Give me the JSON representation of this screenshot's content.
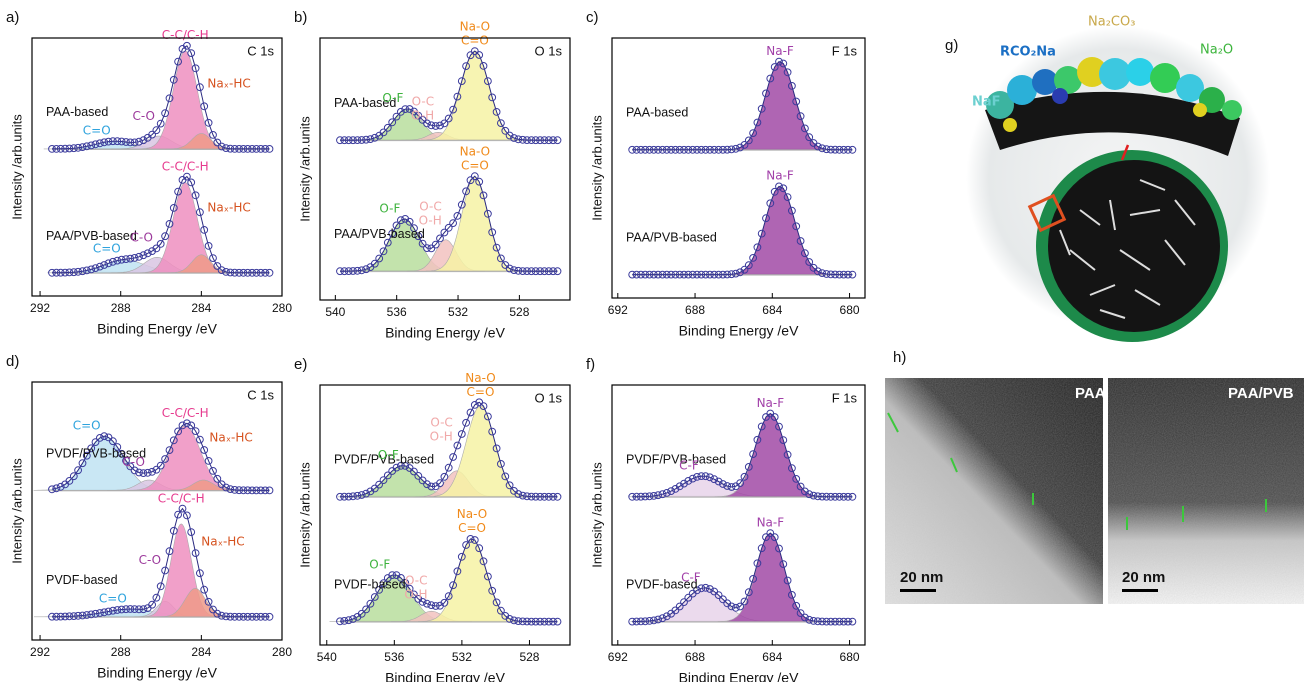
{
  "chart_data": [
    {
      "type": "area",
      "panel_label": "a)",
      "title": "C 1s",
      "xlabel": "Binding Energy /eV",
      "ylabel": "Intensity /arb.units",
      "xlim": [
        292.4,
        280
      ],
      "xticks": [
        292,
        288,
        284,
        280
      ],
      "ylim": [
        0,
        100
      ],
      "spectra": [
        {
          "name": "PAA-based",
          "baseline": 57,
          "peaks": [
            {
              "labels": [
                "C=O"
              ],
              "center": 288.3,
              "height": 3,
              "width": 2.2,
              "color": "#bfe3f2",
              "label_color": "#2ea3dd"
            },
            {
              "labels": [
                "C-O"
              ],
              "center": 286.1,
              "height": 5,
              "width": 1.5,
              "color": "#d9c6e3",
              "label_color": "#9c3a9c"
            },
            {
              "labels": [
                "C-C/C-H"
              ],
              "center": 284.8,
              "height": 38,
              "width": 1.4,
              "color": "#ef8fc0",
              "label_color": "#e63a8e"
            },
            {
              "labels": [
                "Naₓ-HC"
              ],
              "center": 284.0,
              "height": 6,
              "width": 1.1,
              "color": "#ee9a88",
              "label_color": "#d6521f"
            }
          ]
        },
        {
          "name": "PAA/PVB-based",
          "baseline": 9,
          "peaks": [
            {
              "labels": [
                "C=O"
              ],
              "center": 287.8,
              "height": 5,
              "width": 2.4,
              "color": "#bfe3f2",
              "label_color": "#2ea3dd"
            },
            {
              "labels": [
                "C-O"
              ],
              "center": 286.2,
              "height": 6,
              "width": 1.5,
              "color": "#d9c6e3",
              "label_color": "#9c3a9c"
            },
            {
              "labels": [
                "C-C/C-H"
              ],
              "center": 284.8,
              "height": 35,
              "width": 1.4,
              "color": "#ef8fc0",
              "label_color": "#e63a8e"
            },
            {
              "labels": [
                "Naₓ-HC"
              ],
              "center": 284.0,
              "height": 7,
              "width": 1.1,
              "color": "#ee9a88",
              "label_color": "#d6521f"
            }
          ]
        }
      ]
    },
    {
      "type": "area",
      "panel_label": "b)",
      "title": "O 1s",
      "xlabel": "Binding Energy /eV",
      "ylabel": "Intensity /arb.units",
      "xlim": [
        541,
        524.7
      ],
      "xticks": [
        540,
        536,
        532,
        528
      ],
      "ylim": [
        0,
        100
      ],
      "spectra": [
        {
          "name": "PAA-based",
          "baseline": 61,
          "peaks": [
            {
              "labels": [
                "O-F"
              ],
              "center": 535.3,
              "height": 12,
              "width": 2.2,
              "color": "#b9de9e",
              "label_color": "#3db33d"
            },
            {
              "labels": [
                "O-C",
                "O-H"
              ],
              "center": 533.3,
              "height": 3,
              "width": 1.5,
              "color": "#f2c2c0",
              "label_color": "#f0a8a8"
            },
            {
              "labels": [
                "Na-O",
                "C=O"
              ],
              "center": 530.9,
              "height": 34,
              "width": 2.2,
              "color": "#f6f2a4",
              "label_color": "#f08a1a"
            }
          ]
        },
        {
          "name": "PAA/PVB-based",
          "baseline": 11,
          "peaks": [
            {
              "labels": [
                "O-F"
              ],
              "center": 535.5,
              "height": 20,
              "width": 2.3,
              "color": "#b9de9e",
              "label_color": "#3db33d"
            },
            {
              "labels": [
                "O-C",
                "O-H"
              ],
              "center": 532.8,
              "height": 12,
              "width": 1.6,
              "color": "#f2c2c0",
              "label_color": "#f0a8a8"
            },
            {
              "labels": [
                "Na-O",
                "C=O"
              ],
              "center": 530.9,
              "height": 36,
              "width": 2.0,
              "color": "#f6f2a4",
              "label_color": "#f08a1a"
            }
          ]
        }
      ]
    },
    {
      "type": "area",
      "panel_label": "c)",
      "title": "F 1s",
      "xlabel": "Binding Energy /eV",
      "ylabel": "Intensity /arb.units",
      "xlim": [
        692.3,
        679.2
      ],
      "xticks": [
        692,
        688,
        684,
        680
      ],
      "ylim": [
        0,
        100
      ],
      "spectra": [
        {
          "name": "PAA-based",
          "baseline": 57,
          "peaks": [
            {
              "labels": [
                "Na-F"
              ],
              "center": 683.6,
              "height": 34,
              "width": 1.8,
              "color": "#a14aa6",
              "label_color": "#a13fa8"
            }
          ]
        },
        {
          "name": "PAA/PVB-based",
          "baseline": 9,
          "peaks": [
            {
              "labels": [
                "Na-F"
              ],
              "center": 683.6,
              "height": 34,
              "width": 1.8,
              "color": "#a14aa6",
              "label_color": "#a13fa8"
            }
          ]
        }
      ]
    },
    {
      "type": "area",
      "panel_label": "d)",
      "title": "C 1s",
      "xlabel": "Binding Energy /eV",
      "ylabel": "Intensity /arb.units",
      "xlim": [
        292.4,
        280
      ],
      "xticks": [
        292,
        288,
        284,
        280
      ],
      "ylim": [
        0,
        100
      ],
      "spectra": [
        {
          "name": "PVDF/PVB-based",
          "baseline": 58,
          "peaks": [
            {
              "labels": [
                "C=O"
              ],
              "center": 288.8,
              "height": 21,
              "width": 2.2,
              "color": "#bfe3f2",
              "label_color": "#2ea3dd"
            },
            {
              "labels": [
                "C-O"
              ],
              "center": 286.6,
              "height": 4,
              "width": 1.3,
              "color": "#d9c6e3",
              "label_color": "#9c3a9c"
            },
            {
              "labels": [
                "C-C/C-H"
              ],
              "center": 284.8,
              "height": 25,
              "width": 1.8,
              "color": "#ef8fc0",
              "label_color": "#e63a8e"
            },
            {
              "labels": [
                "Naₓ-HC"
              ],
              "center": 283.9,
              "height": 4,
              "width": 1.2,
              "color": "#ee9a88",
              "label_color": "#d6521f"
            }
          ]
        },
        {
          "name": "PVDF-based",
          "baseline": 9,
          "peaks": [
            {
              "labels": [
                "C=O"
              ],
              "center": 287.5,
              "height": 3,
              "width": 3,
              "color": "#bfe3f2",
              "label_color": "#2ea3dd"
            },
            {
              "labels": [
                "C-O"
              ],
              "center": 285.8,
              "height": 6,
              "width": 1.0,
              "color": "#d9c6e3",
              "label_color": "#9c3a9c"
            },
            {
              "labels": [
                "C-C/C-H"
              ],
              "center": 285.0,
              "height": 36,
              "width": 1.2,
              "color": "#ef8fc0",
              "label_color": "#e63a8e"
            },
            {
              "labels": [
                "Naₓ-HC"
              ],
              "center": 284.3,
              "height": 11,
              "width": 1.2,
              "color": "#ee9a88",
              "label_color": "#d6521f"
            }
          ]
        }
      ]
    },
    {
      "type": "area",
      "panel_label": "e)",
      "title": "O 1s",
      "xlabel": "Binding Energy /eV",
      "ylabel": "Intensity /arb.units",
      "xlim": [
        540.4,
        525.6
      ],
      "xticks": [
        540,
        536,
        532,
        528
      ],
      "ylim": [
        0,
        100
      ],
      "spectra": [
        {
          "name": "PVDF/PVB-based",
          "baseline": 57,
          "peaks": [
            {
              "labels": [
                "O-F"
              ],
              "center": 535.5,
              "height": 12,
              "width": 2.4,
              "color": "#b9de9e",
              "label_color": "#3db33d"
            },
            {
              "labels": [
                "O-C",
                "O-H"
              ],
              "center": 532.3,
              "height": 10,
              "width": 1.6,
              "color": "#f2c2c0",
              "label_color": "#f0a8a8"
            },
            {
              "labels": [
                "Na-O",
                "C=O"
              ],
              "center": 530.9,
              "height": 35,
              "width": 2.0,
              "color": "#f6f2a4",
              "label_color": "#f08a1a"
            }
          ]
        },
        {
          "name": "PVDF-based",
          "baseline": 9,
          "peaks": [
            {
              "labels": [
                "O-F"
              ],
              "center": 536.0,
              "height": 18,
              "width": 2.4,
              "color": "#b9de9e",
              "label_color": "#3db33d"
            },
            {
              "labels": [
                "O-C",
                "O-H"
              ],
              "center": 533.8,
              "height": 4,
              "width": 1.5,
              "color": "#f2c2c0",
              "label_color": "#f0a8a8"
            },
            {
              "labels": [
                "Na-O",
                "C=O"
              ],
              "center": 531.4,
              "height": 32,
              "width": 2.0,
              "color": "#f6f2a4",
              "label_color": "#f08a1a"
            }
          ]
        }
      ]
    },
    {
      "type": "area",
      "panel_label": "f)",
      "title": "F 1s",
      "xlabel": "Binding Energy /eV",
      "ylabel": "Intensity /arb.units",
      "xlim": [
        692.3,
        679.2
      ],
      "xticks": [
        692,
        688,
        684,
        680
      ],
      "ylim": [
        0,
        100
      ],
      "spectra": [
        {
          "name": "PVDF/PVB-based",
          "baseline": 57,
          "peaks": [
            {
              "labels": [
                "C-F"
              ],
              "center": 687.6,
              "height": 8,
              "width": 2.4,
              "color": "#e8d3ea",
              "label_color": "#a13fa8"
            },
            {
              "labels": [
                "Na-F"
              ],
              "center": 684.1,
              "height": 32,
              "width": 1.8,
              "color": "#a14aa6",
              "label_color": "#a13fa8"
            }
          ]
        },
        {
          "name": "PVDF-based",
          "baseline": 9,
          "peaks": [
            {
              "labels": [
                "C-F"
              ],
              "center": 687.5,
              "height": 13,
              "width": 2.4,
              "color": "#e8d3ea",
              "label_color": "#a13fa8"
            },
            {
              "labels": [
                "Na-F"
              ],
              "center": 684.1,
              "height": 34,
              "width": 1.7,
              "color": "#a14aa6",
              "label_color": "#a13fa8"
            }
          ]
        }
      ]
    }
  ],
  "illustration": {
    "label": "g)",
    "layers": [
      "RCO₂Na",
      "Na₂CO₃",
      "Na₂O",
      "NaF"
    ]
  },
  "tem": {
    "label": "h)",
    "images": [
      {
        "title": "PAA",
        "scale_bar": "20 nm"
      },
      {
        "title": "PAA/PVB",
        "scale_bar": "20 nm"
      }
    ]
  }
}
